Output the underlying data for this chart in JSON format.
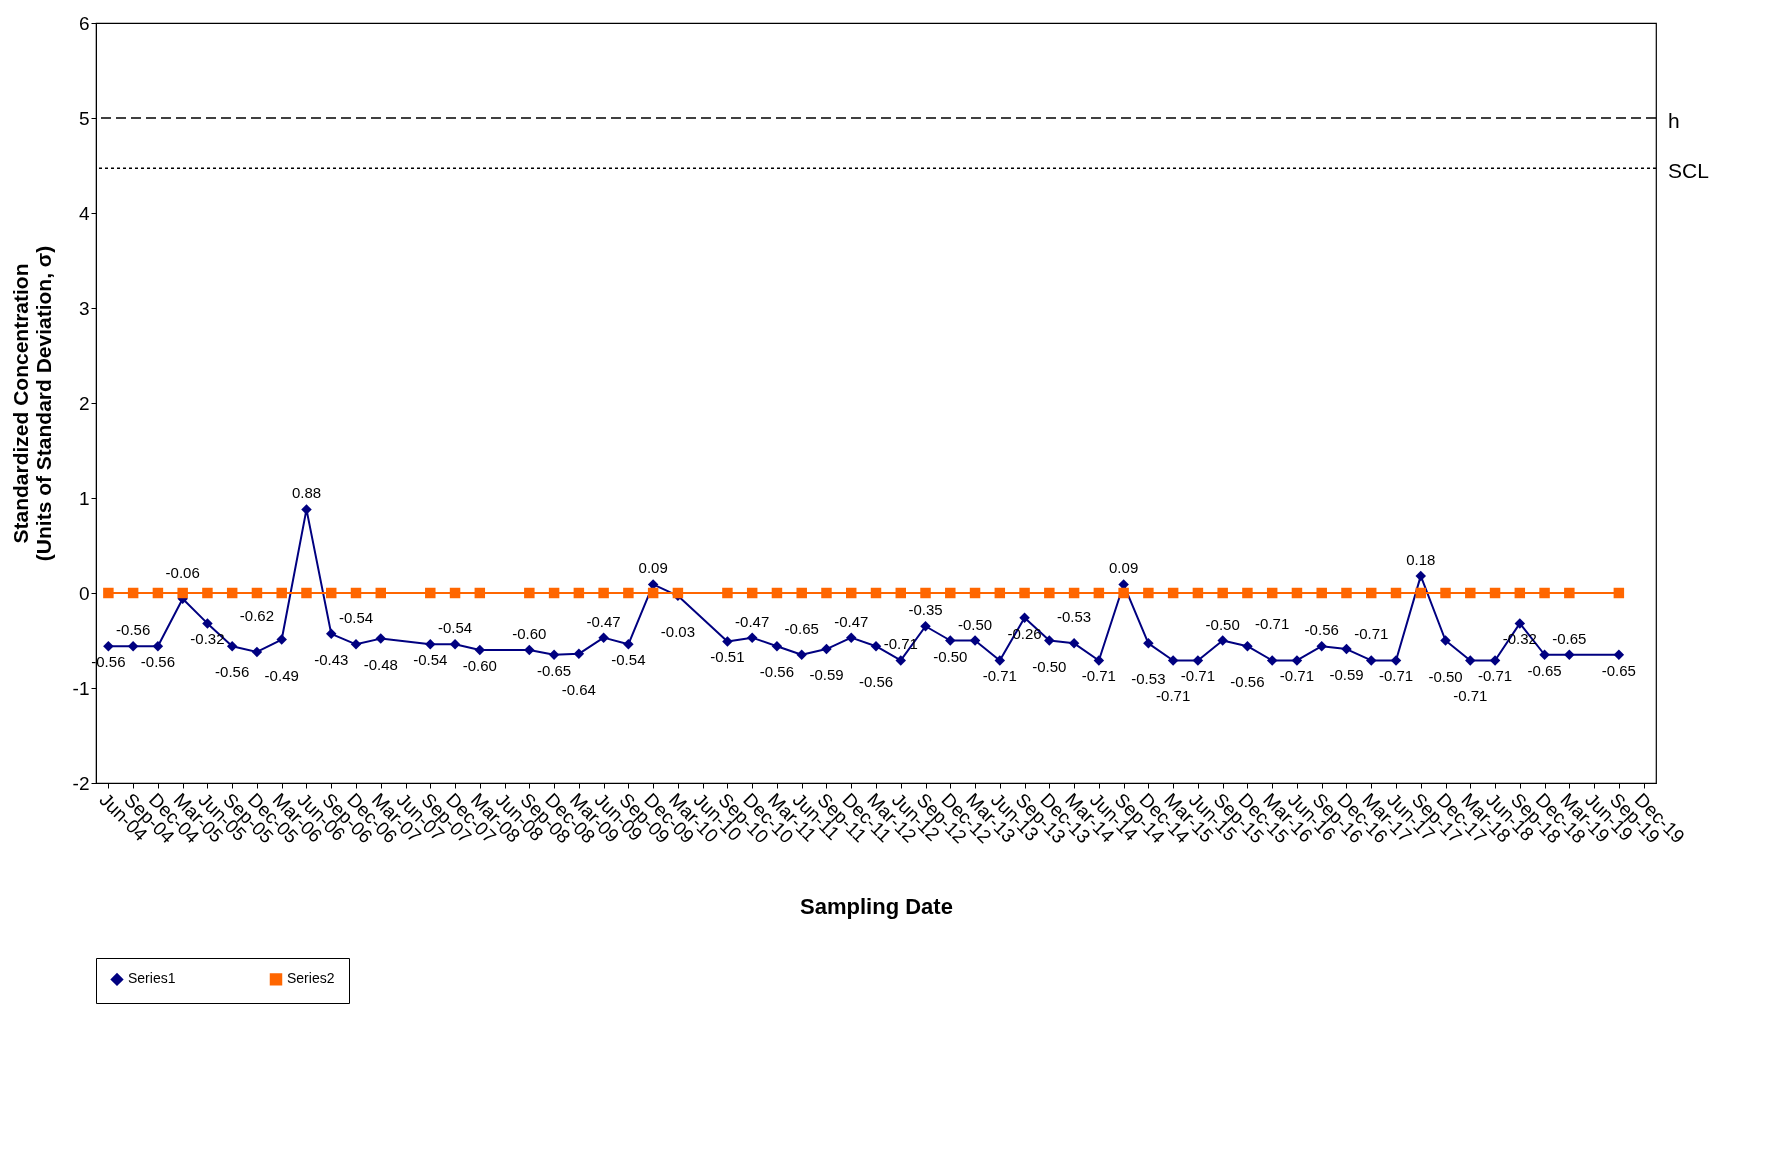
{
  "chart_data": {
    "type": "line",
    "xlabel": "Sampling Date",
    "ylabel": "Standardized Concentration\n(Units of Standard Deviation, σ)",
    "categories": [
      "Jun-04",
      "Sep-04",
      "Dec-04",
      "Mar-05",
      "Jun-05",
      "Sep-05",
      "Dec-05",
      "Mar-06",
      "Jun-06",
      "Sep-06",
      "Dec-06",
      "Mar-07",
      "Jun-07",
      "Sep-07",
      "Dec-07",
      "Mar-08",
      "Jun-08",
      "Sep-08",
      "Dec-08",
      "Mar-09",
      "Jun-09",
      "Sep-09",
      "Dec-09",
      "Mar-10",
      "Jun-10",
      "Sep-10",
      "Dec-10",
      "Mar-11",
      "Jun-11",
      "Sep-11",
      "Dec-11",
      "Mar-12",
      "Jun-12",
      "Sep-12",
      "Dec-12",
      "Mar-13",
      "Jun-13",
      "Sep-13",
      "Dec-13",
      "Mar-14",
      "Jun-14",
      "Sep-14",
      "Dec-14",
      "Mar-15",
      "Jun-15",
      "Sep-15",
      "Dec-15",
      "Mar-16",
      "Jun-16",
      "Sep-16",
      "Dec-16",
      "Mar-17",
      "Jun-17",
      "Sep-17",
      "Dec-17",
      "Mar-18",
      "Jun-18",
      "Sep-18",
      "Dec-18",
      "Mar-19",
      "Jun-19",
      "Sep-19",
      "Dec-19"
    ],
    "series": [
      {
        "name": "Series1",
        "color": "#000080",
        "marker": "diamond",
        "values": [
          -0.56,
          -0.56,
          -0.56,
          -0.06,
          -0.32,
          -0.56,
          -0.62,
          -0.49,
          0.88,
          -0.43,
          -0.54,
          -0.48,
          null,
          -0.54,
          -0.54,
          -0.6,
          null,
          -0.6,
          -0.65,
          -0.64,
          -0.47,
          -0.54,
          0.09,
          -0.03,
          null,
          -0.51,
          -0.47,
          -0.56,
          -0.65,
          -0.59,
          -0.47,
          -0.56,
          -0.71,
          -0.35,
          -0.5,
          -0.5,
          -0.71,
          -0.26,
          -0.5,
          -0.53,
          -0.71,
          0.09,
          -0.53,
          -0.71,
          -0.71,
          -0.5,
          -0.56,
          -0.71,
          -0.71,
          -0.56,
          -0.59,
          -0.71,
          -0.71,
          0.18,
          -0.5,
          -0.71,
          -0.71,
          -0.32,
          -0.65,
          -0.65,
          null,
          -0.65,
          null
        ],
        "value_labels": [
          "-0.56",
          "-0.56",
          "-0.56",
          "-0.06",
          "-0.32",
          "-0.56",
          "-0.62",
          "-0.49",
          "0.88",
          "-0.43",
          "-0.54",
          "-0.48",
          null,
          "-0.54",
          "-0.54",
          "-0.60",
          null,
          "-0.60",
          "-0.65",
          "-0.64",
          "-0.47",
          "-0.54",
          "0.09",
          "-0.03",
          null,
          "-0.51",
          "-0.47",
          "-0.56",
          "-0.65",
          "-0.59",
          "-0.47",
          "-0.56",
          "-0.71",
          "-0.35",
          "-0.50",
          "-0.50",
          "-0.71",
          "-0.26",
          "-0.50",
          "-0.53",
          "-0.71",
          "0.09",
          "-0.53",
          "-0.71",
          "-0.71",
          "-0.50",
          "-0.56",
          "-0.71",
          "-0.71",
          "-0.56",
          "-0.59",
          "-0.71",
          "-0.71",
          "0.18",
          "-0.50",
          "-0.71",
          "-0.71",
          "-0.32",
          "-0.65",
          "-0.65",
          null,
          "-0.65",
          null
        ]
      },
      {
        "name": "Series2",
        "color": "#ff6600",
        "marker": "square",
        "values": [
          0,
          0,
          0,
          0,
          0,
          0,
          0,
          0,
          0,
          0,
          0,
          0,
          null,
          0,
          0,
          0,
          null,
          0,
          0,
          0,
          0,
          0,
          0,
          0,
          null,
          0,
          0,
          0,
          0,
          0,
          0,
          0,
          0,
          0,
          0,
          0,
          0,
          0,
          0,
          0,
          0,
          0,
          0,
          0,
          0,
          0,
          0,
          0,
          0,
          0,
          0,
          0,
          0,
          0,
          0,
          0,
          0,
          0,
          0,
          0,
          null,
          0,
          null
        ]
      }
    ],
    "ylim": [
      -2,
      6
    ],
    "yticks": [
      -2,
      -1,
      0,
      1,
      2,
      3,
      4,
      5,
      6
    ],
    "ref_lines": [
      {
        "axis": "y",
        "value": 5,
        "label": "h",
        "line_style": "dashed"
      },
      {
        "axis": "y",
        "value": 4.47,
        "label": "SCL",
        "line_style": "dotted"
      }
    ],
    "grid": false,
    "legend": "bottom"
  }
}
